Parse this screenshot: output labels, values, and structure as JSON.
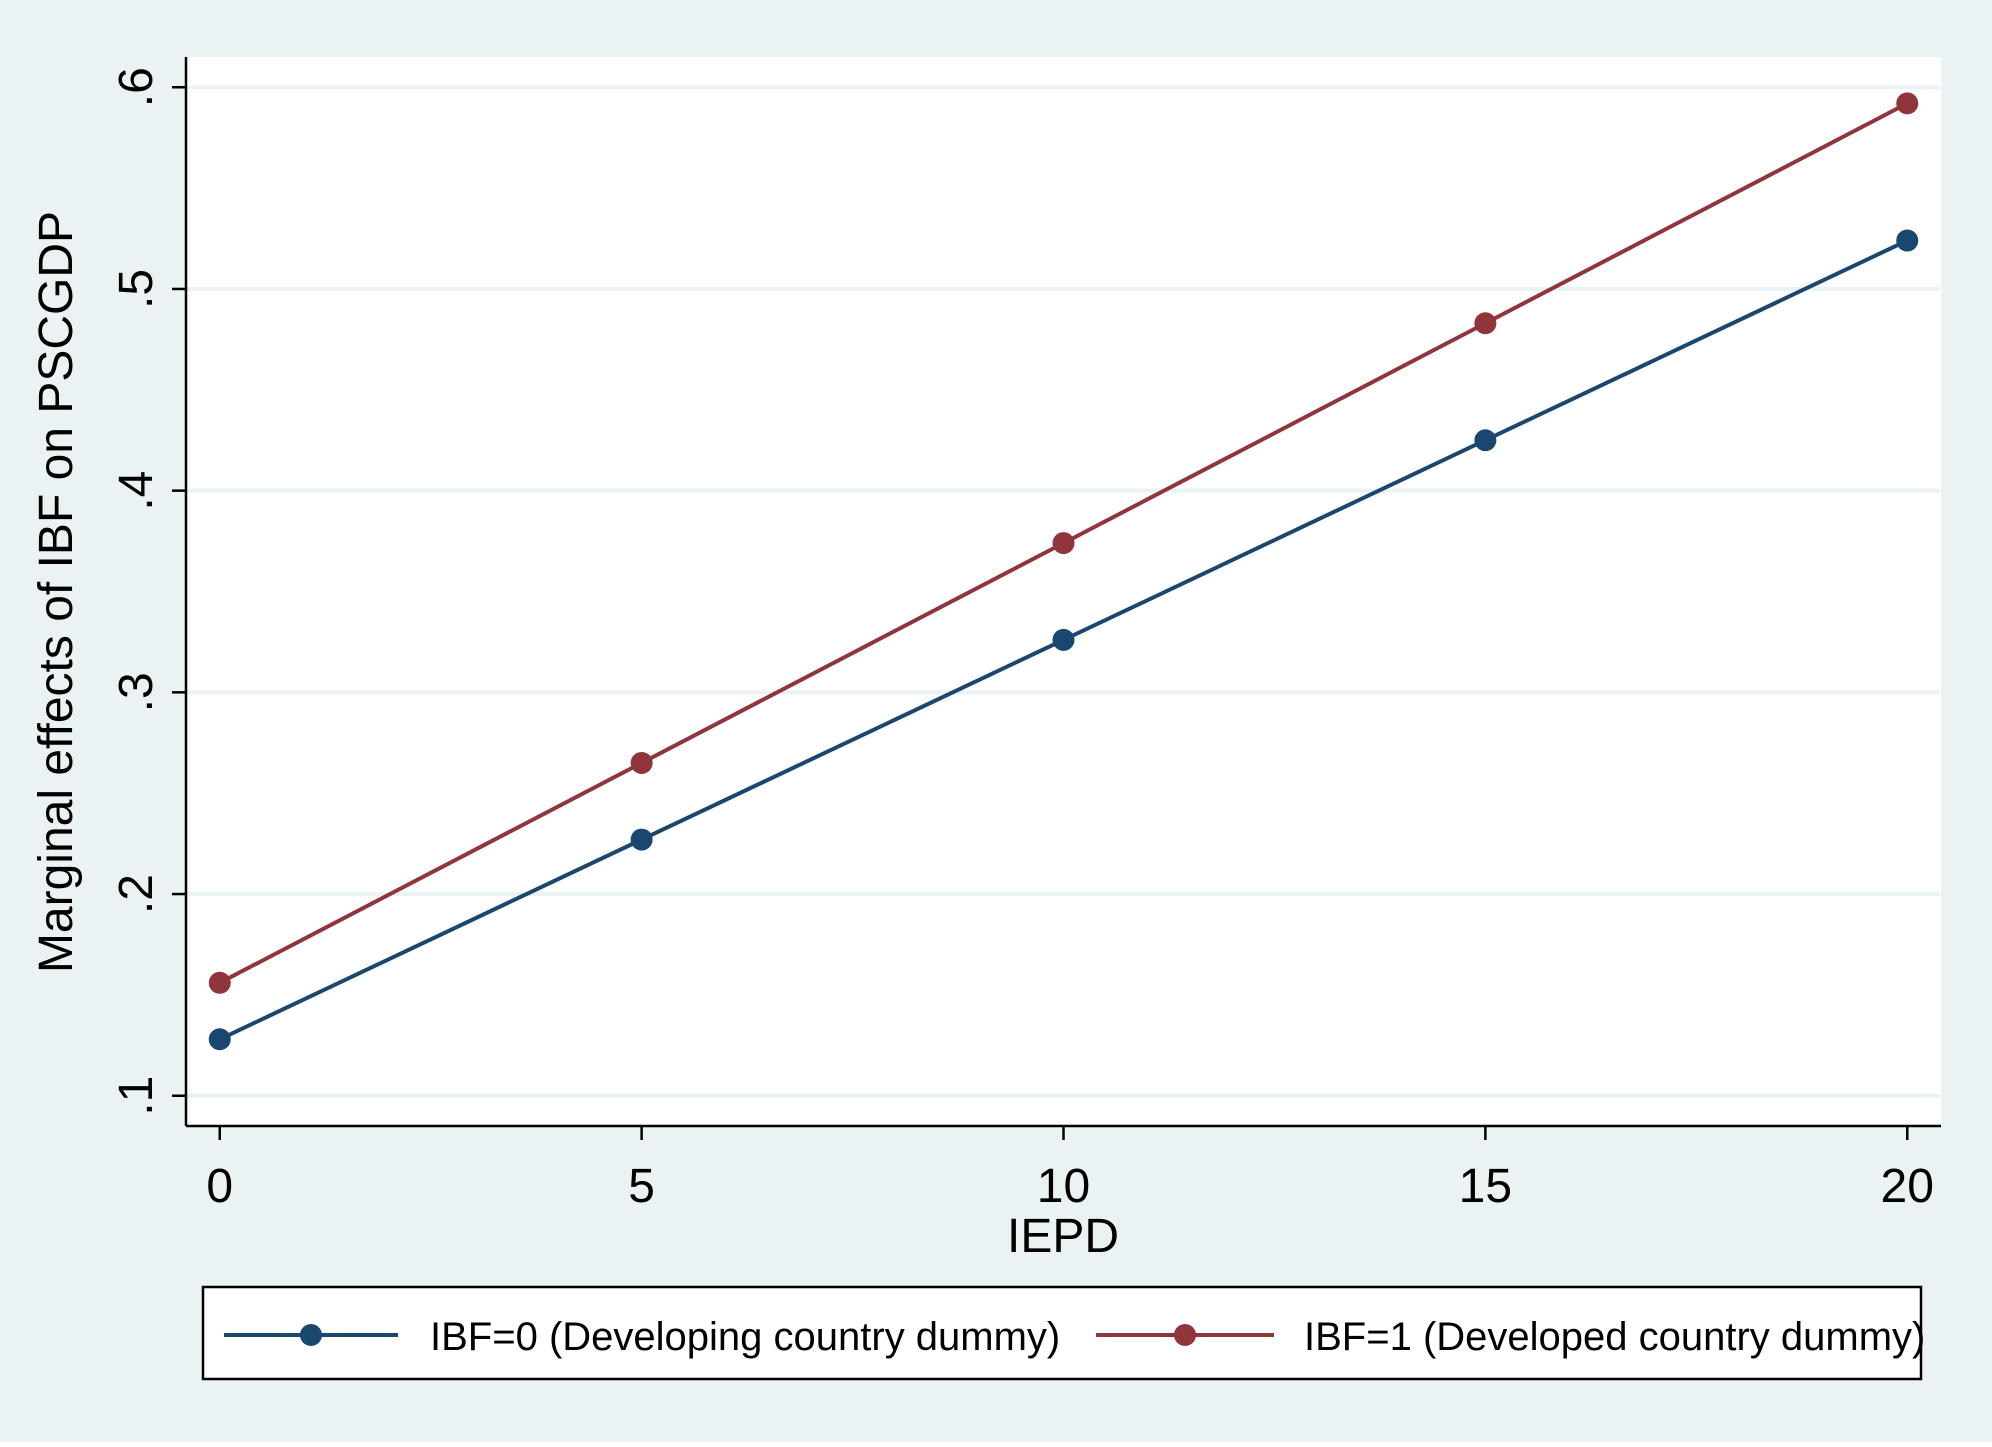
{
  "chart_data": {
    "type": "line",
    "xlabel": "IEPD",
    "ylabel": "Marginal effects of IBF on PSCGDP",
    "x": [
      0,
      5,
      10,
      15,
      20
    ],
    "xlim": [
      -0.4,
      20.4
    ],
    "ylim": [
      0.085,
      0.615
    ],
    "xticks": [
      0,
      5,
      10,
      15,
      20
    ],
    "xtick_labels": [
      "0",
      "5",
      "10",
      "15",
      "20"
    ],
    "yticks": [
      0.1,
      0.2,
      0.3,
      0.4,
      0.5,
      0.6
    ],
    "ytick_labels": [
      ".1",
      ".2",
      ".3",
      ".4",
      ".5",
      ".6"
    ],
    "grid": "horizontal",
    "legend_position": "bottom",
    "series": [
      {
        "name": "IBF=0 (Developing country dummy)",
        "color": "#1a476f",
        "values": [
          0.128,
          0.227,
          0.326,
          0.425,
          0.524
        ]
      },
      {
        "name": "IBF=1 (Developed country dummy)",
        "color": "#90353b",
        "values": [
          0.156,
          0.265,
          0.374,
          0.483,
          0.592
        ]
      }
    ],
    "colors": {
      "outer_background": "#eaf2f3",
      "plot_background": "#ffffff",
      "grid": "#eaf2f3",
      "axis": "#000000"
    }
  }
}
